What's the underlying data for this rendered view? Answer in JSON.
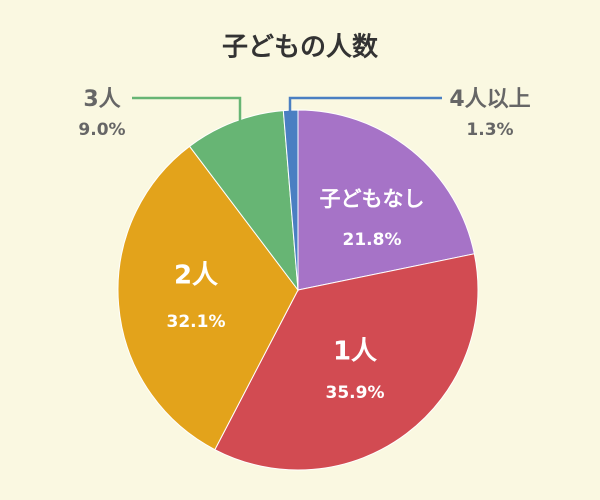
{
  "chart_data": {
    "type": "pie",
    "title": "子どもの人数",
    "categories": [
      "子どもなし",
      "1人",
      "2人",
      "3人",
      "4人以上"
    ],
    "values": [
      21.8,
      35.9,
      32.1,
      9.0,
      1.3
    ],
    "value_labels": [
      "21.8%",
      "35.9%",
      "32.1%",
      "9.0%",
      "1.3%"
    ],
    "colors": [
      "#a673c7",
      "#d24b52",
      "#e3a31b",
      "#67b574",
      "#4a7fc2"
    ]
  }
}
